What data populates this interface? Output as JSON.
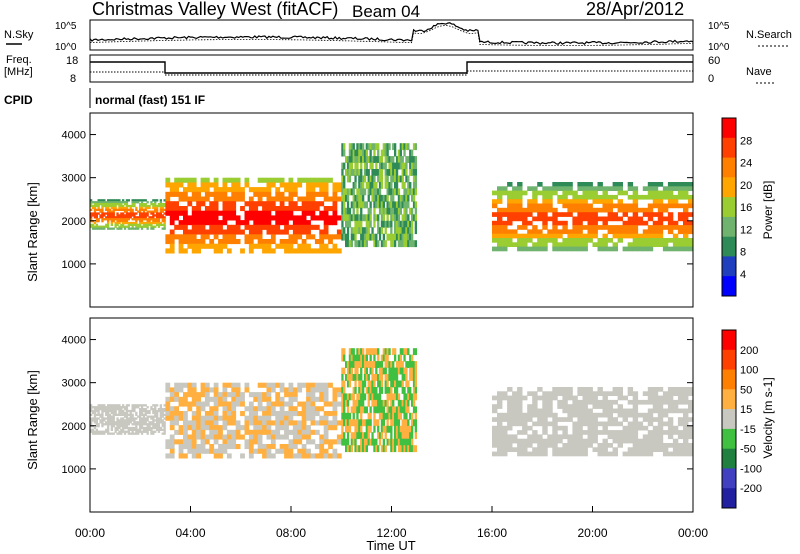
{
  "header": {
    "title": "Christmas Valley West (fitACF)",
    "beam": "Beam 04",
    "date": "28/Apr/2012"
  },
  "top_panels": {
    "nsky_label": "N.Sky",
    "nsearch_label": "N.Search",
    "freq_label_1": "Freq.",
    "freq_label_2": "[MHz]",
    "nave_label": "Nave",
    "cpid_label": "CPID",
    "cpid_text": "normal (fast) 151 IF",
    "noise_ticks_left": [
      "10^5",
      "10^0"
    ],
    "noise_ticks_right": [
      "10^5",
      "10^0"
    ],
    "freq_ticks": [
      "18",
      "8"
    ],
    "nave_ticks": [
      "60",
      "0"
    ]
  },
  "colors": {
    "power_scale": [
      "#0000ff",
      "#1f3fbf",
      "#2e8b57",
      "#6fb36f",
      "#9acd32",
      "#ffa500",
      "#ff7f00",
      "#ff4000",
      "#ff0000"
    ],
    "velocity_scale": [
      "#2020a0",
      "#4040c0",
      "#208040",
      "#40c040",
      "#c8c8c0",
      "#ffb040",
      "#ff8000",
      "#ff4000",
      "#ff0000"
    ]
  },
  "chart_data": [
    {
      "type": "heatmap",
      "title": "Power",
      "ylabel": "Slant Range [km]",
      "ylim": [
        0,
        4500
      ],
      "yticks": [
        1000,
        2000,
        3000,
        4000
      ],
      "colorbar_label": "Power [dB]",
      "colorbar_ticks": [
        "28",
        "24",
        "20",
        "16",
        "12",
        "8",
        "4"
      ],
      "bands": [
        {
          "range_km": [
            1800,
            2500
          ],
          "time_hours": [
            0,
            3
          ],
          "level": "orange-red"
        },
        {
          "range_km": [
            1250,
            3000
          ],
          "time_hours": [
            3,
            10
          ],
          "level": "red"
        },
        {
          "range_km": [
            1400,
            3800
          ],
          "time_hours": [
            10,
            13
          ],
          "level": "green-blue"
        },
        {
          "range_km": [
            1300,
            2900
          ],
          "time_hours": [
            16,
            24
          ],
          "level": "orange-red"
        }
      ]
    },
    {
      "type": "heatmap",
      "title": "Velocity",
      "ylabel": "Slant Range [km]",
      "ylim": [
        0,
        4500
      ],
      "yticks": [
        1000,
        2000,
        3000,
        4000
      ],
      "colorbar_label": "Velocity [m s-1]",
      "colorbar_ticks": [
        "200",
        "100",
        "50",
        "15",
        "-15",
        "-50",
        "-100",
        "-200"
      ],
      "x_ticks": [
        "00:00",
        "04:00",
        "08:00",
        "12:00",
        "16:00",
        "20:00",
        "00:00"
      ],
      "xlabel": "Time UT"
    }
  ]
}
